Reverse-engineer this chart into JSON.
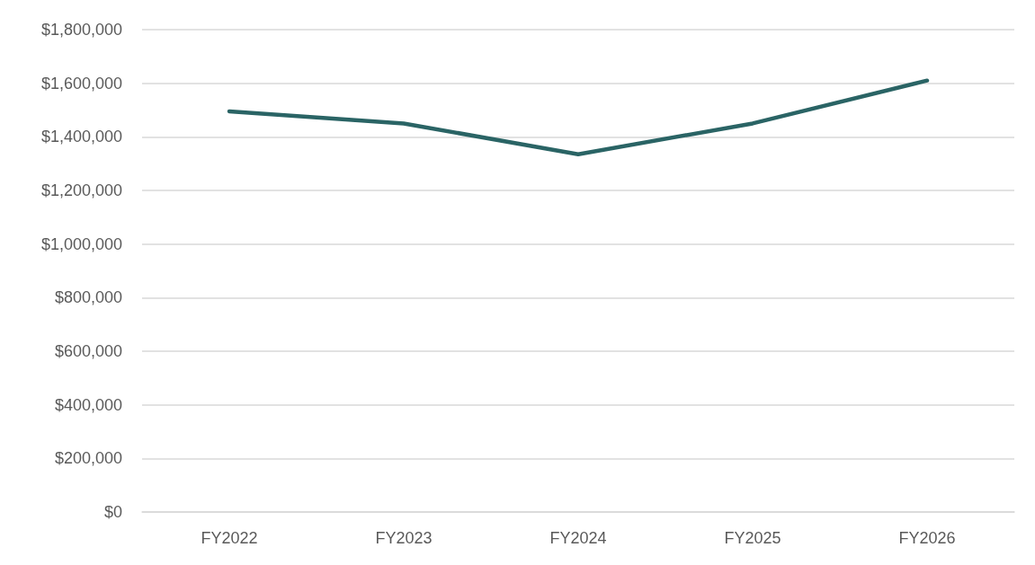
{
  "chart_data": {
    "type": "line",
    "categories": [
      "FY2022",
      "FY2023",
      "FY2024",
      "FY2025",
      "FY2026"
    ],
    "series": [
      {
        "color": "#2a6465",
        "values": [
          1495000,
          1450000,
          1335000,
          1450000,
          1610000
        ]
      }
    ],
    "ylim": [
      0,
      1800000
    ],
    "yticks": [
      {
        "value": 0,
        "label": "$0"
      },
      {
        "value": 200000,
        "label": "$200,000"
      },
      {
        "value": 400000,
        "label": "$400,000"
      },
      {
        "value": 600000,
        "label": "$600,000"
      },
      {
        "value": 800000,
        "label": "$800,000"
      },
      {
        "value": 1000000,
        "label": "$1,000,000"
      },
      {
        "value": 1200000,
        "label": "$1,200,000"
      },
      {
        "value": 1400000,
        "label": "$1,400,000"
      },
      {
        "value": 1600000,
        "label": "$1,600,000"
      },
      {
        "value": 1800000,
        "label": "$1,800,000"
      }
    ],
    "grid": "y",
    "marker": "none",
    "line_style": "solid"
  }
}
